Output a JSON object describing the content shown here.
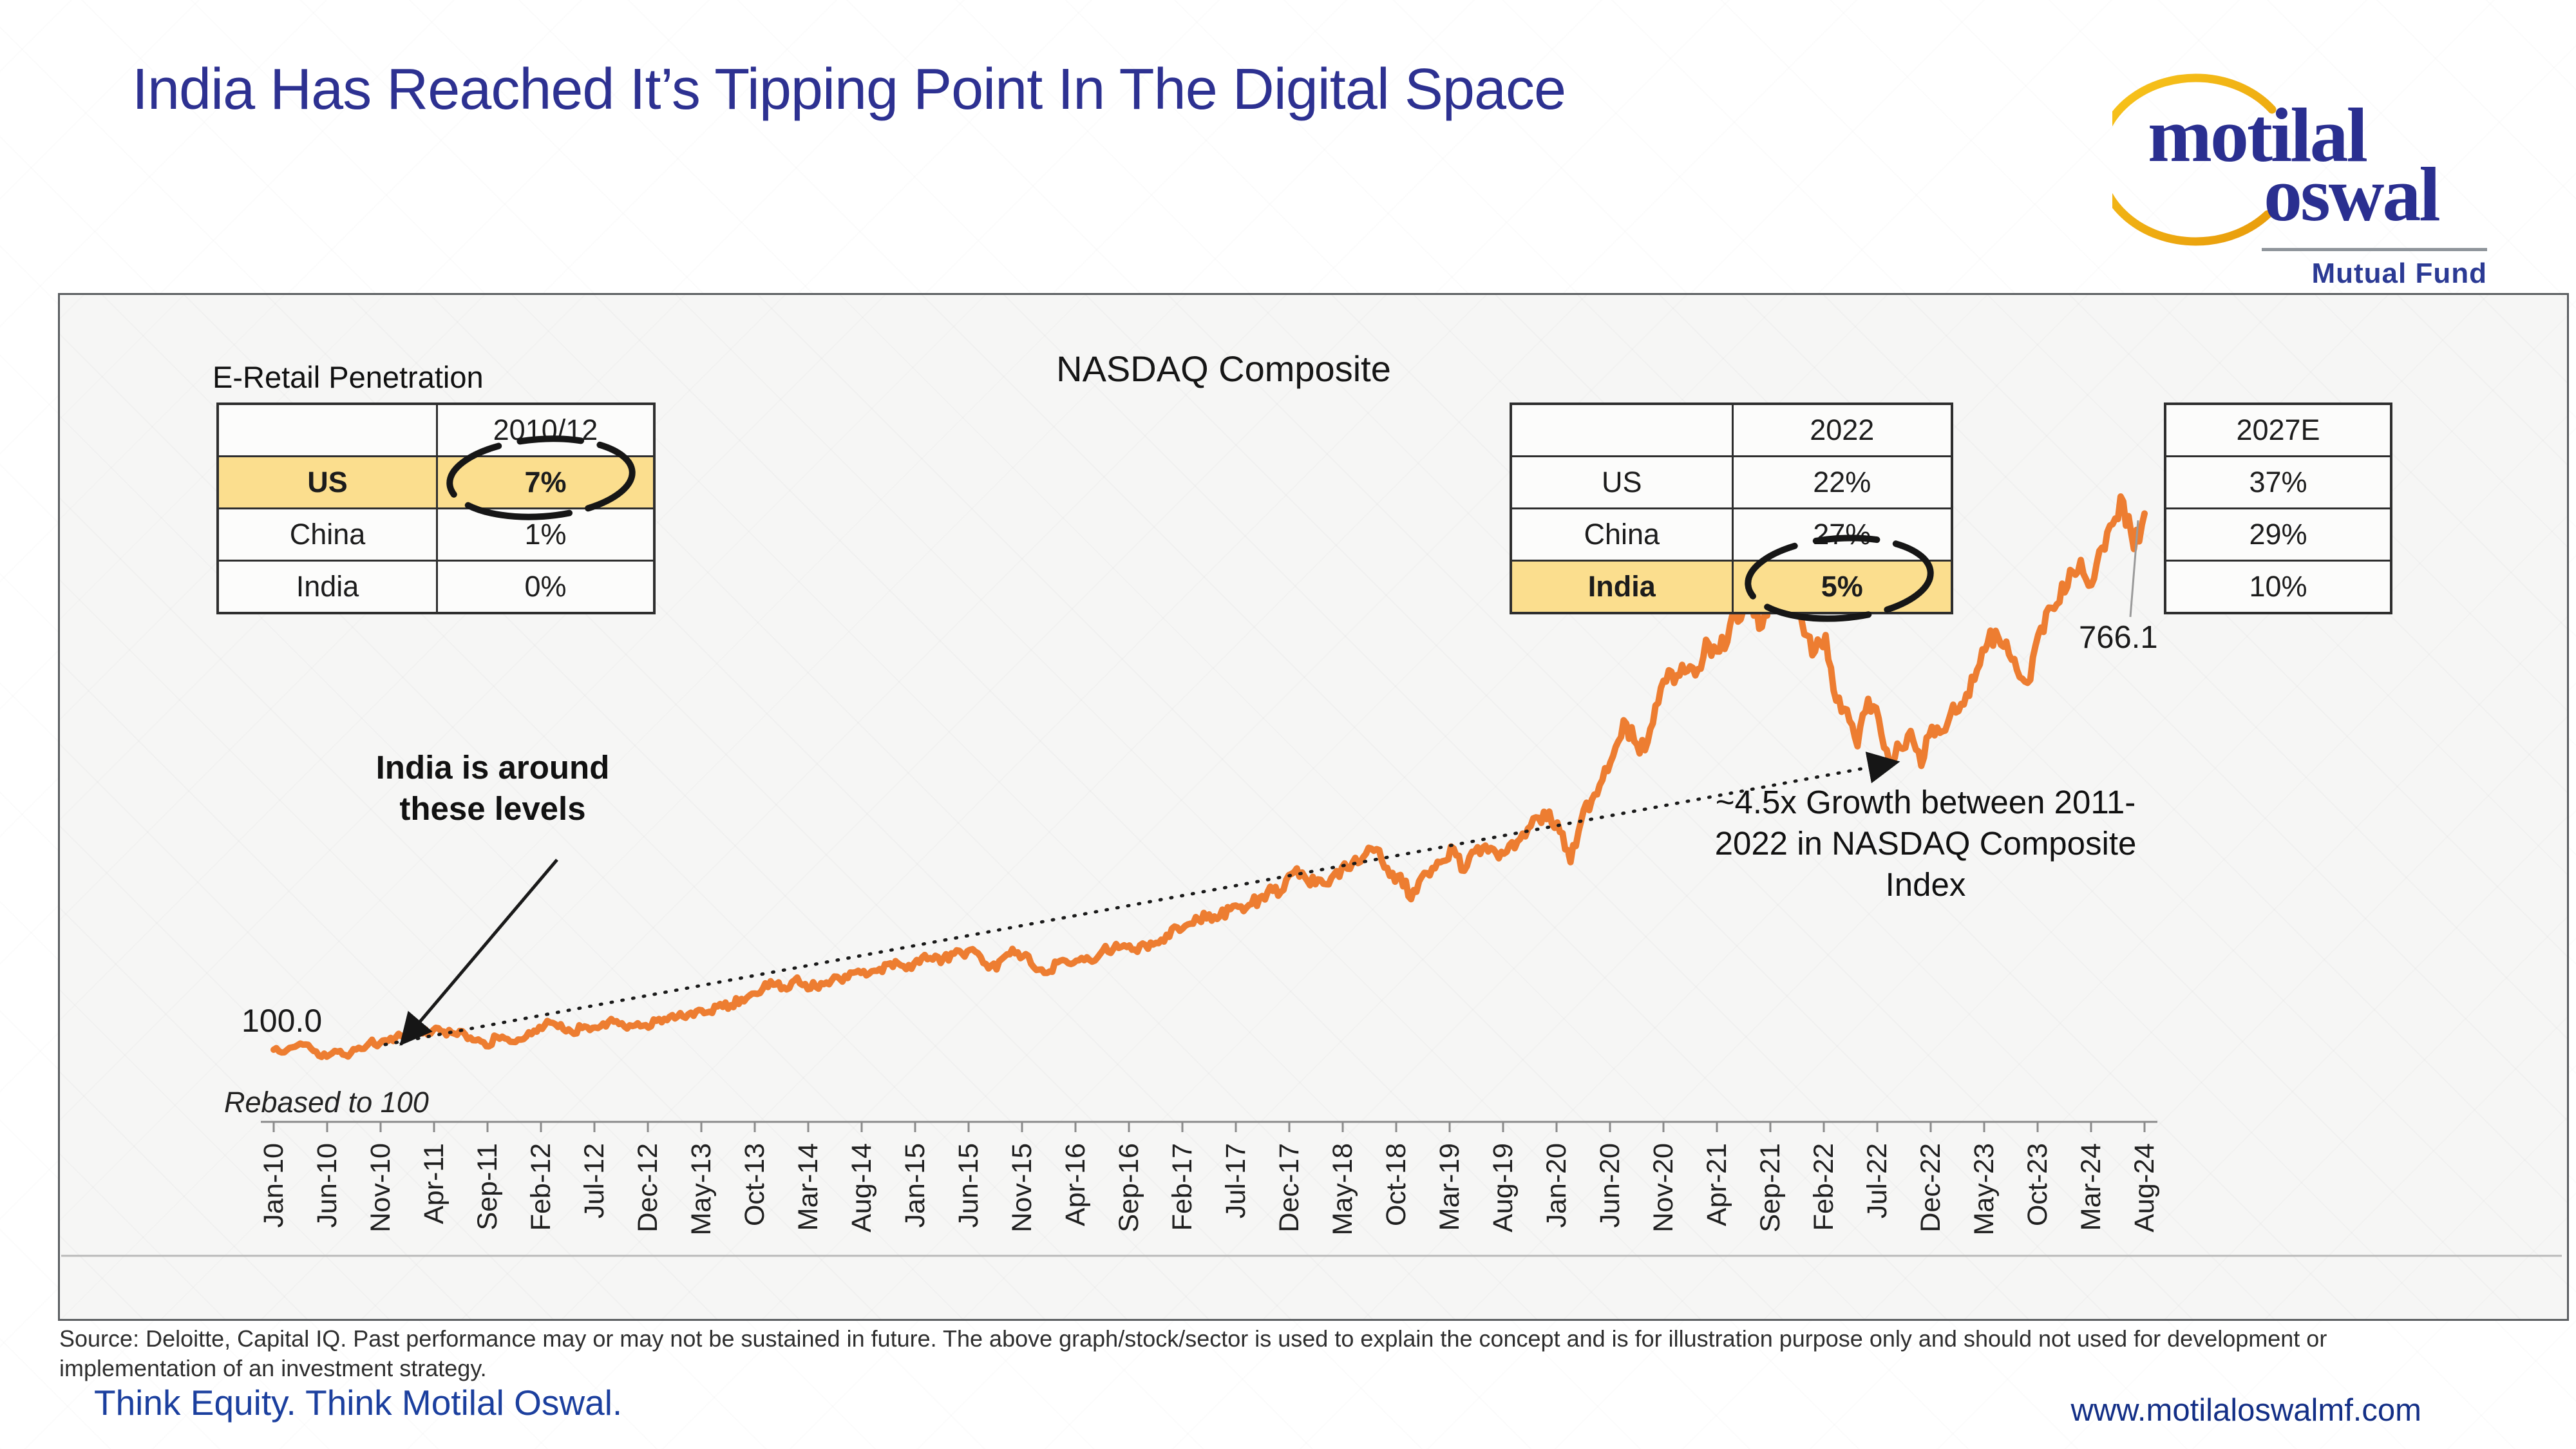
{
  "slide": {
    "title": "India Has Reached It’s Tipping Point In The Digital Space",
    "source_line1": "Source: Deloitte, Capital IQ. Past performance may or may not be sustained in future. The above graph/stock/sector is used to explain the concept and is for illustration purpose only and should not used for development or",
    "source_line2": "implementation of an investment strategy.",
    "footer_left": "Think Equity. Think Motilal Oswal.",
    "footer_right": "www.motilaloswalmf.com",
    "colors": {
      "title_blue": "#2d3191",
      "footer_blue": "#1b3f9e",
      "url_blue": "#132f86",
      "highlight_yellow": "#FBDE8E",
      "line_orange": "#ED7D31",
      "logo_gold": "#F2A90A",
      "logo_blue": "#2a2f90"
    }
  },
  "logo": {
    "word1": "motilal",
    "word2": "oswal",
    "tagline": "Mutual Fund",
    "mark": "gold-open-ellipse"
  },
  "eretail": {
    "label": "E-Retail Penetration",
    "tables": [
      {
        "header": "2010/12",
        "rows": [
          {
            "country": "US",
            "value": "7%",
            "highlight": true,
            "circled": true
          },
          {
            "country": "China",
            "value": "1%",
            "highlight": false,
            "circled": false
          },
          {
            "country": "India",
            "value": "0%",
            "highlight": false,
            "circled": false
          }
        ]
      },
      {
        "header": "2022",
        "rows": [
          {
            "country": "US",
            "value": "22%",
            "highlight": false,
            "circled": false
          },
          {
            "country": "China",
            "value": "27%",
            "highlight": false,
            "circled": false
          },
          {
            "country": "India",
            "value": "5%",
            "highlight": true,
            "circled": true
          }
        ]
      },
      {
        "header": "2027E",
        "rows": [
          {
            "value": "37%"
          },
          {
            "value": "29%"
          },
          {
            "value": "10%"
          }
        ]
      }
    ]
  },
  "chart_data": {
    "type": "line",
    "title": "NASDAQ Composite",
    "series_name": "NASDAQ Composite rebased to 100",
    "rebased_note": "Rebased to 100",
    "start_label": "100.0",
    "end_label": "766.1",
    "annotation_left_lines": [
      "India is around",
      "these levels"
    ],
    "annotation_right_lines": [
      "~4.5x Growth between 2011-",
      "2022 in NASDAQ Composite",
      "Index"
    ],
    "line_color": "#ED7D31",
    "x_start": "Jan-10",
    "x_end": "Aug-24",
    "x_frequency": "monthly",
    "ylim": [
      0,
      850
    ],
    "grid": false,
    "legend": "none",
    "x_tick_labels": [
      "Jan-10",
      "Jun-10",
      "Nov-10",
      "Apr-11",
      "Sep-11",
      "Feb-12",
      "Jul-12",
      "Dec-12",
      "May-13",
      "Oct-13",
      "Mar-14",
      "Aug-14",
      "Jan-15",
      "Jun-15",
      "Nov-15",
      "Apr-16",
      "Sep-16",
      "Feb-17",
      "Jul-17",
      "Dec-17",
      "May-18",
      "Oct-18",
      "Mar-19",
      "Aug-19",
      "Jan-20",
      "Jun-20",
      "Nov-20",
      "Apr-21",
      "Sep-21",
      "Feb-22",
      "Jul-22",
      "Dec-22",
      "May-23",
      "Oct-23",
      "Mar-24",
      "Aug-24"
    ],
    "values": [
      100.0,
      96.8,
      103.7,
      106.5,
      97.7,
      91.3,
      97.6,
      91.5,
      102.5,
      108.4,
      108.1,
      114.7,
      116.8,
      120.3,
      120.3,
      124.3,
      122.6,
      120.0,
      119.2,
      111.6,
      104.4,
      116.1,
      113.3,
      112.7,
      121.7,
      128.4,
      133.8,
      131.7,
      122.3,
      127.0,
      127.2,
      132.7,
      134.8,
      128.8,
      130.2,
      130.6,
      135.9,
      136.7,
      141.3,
      144.0,
      149.5,
      147.2,
      156.8,
      155.3,
      163.1,
      169.6,
      175.6,
      180.7,
      177.5,
      186.4,
      181.6,
      178.0,
      183.5,
      190.7,
      189.0,
      198.1,
      194.3,
      200.3,
      207.3,
      204.8,
      200.5,
      214.7,
      212.0,
      213.7,
      219.3,
      215.7,
      221.8,
      206.6,
      199.8,
      218.6,
      221.0,
      216.6,
      199.5,
      197.2,
      210.6,
      206.5,
      214.0,
      209.4,
      223.3,
      225.4,
      229.8,
      224.5,
      230.2,
      232.8,
      242.8,
      251.9,
      255.7,
      261.6,
      268.1,
      265.6,
      274.6,
      278.0,
      281.0,
      291.0,
      297.3,
      298.5,
      320.5,
      314.6,
      305.5,
      305.6,
      321.9,
      324.9,
      331.8,
      350.8,
      348.0,
      316.0,
      317.1,
      287.0,
      314.9,
      325.8,
      334.3,
      350.1,
      322.3,
      346.3,
      353.6,
      344.4,
      346.0,
      358.6,
      374.8,
      388.1,
      395.8,
      370.5,
      333.0,
      384.5,
      410.4,
      435.1,
      464.7,
      509.3,
      483.0,
      472.0,
      527.6,
      557.4,
      565.3,
      570.6,
      573.0,
      603.9,
      594.6,
      627.3,
      634.6,
      660.0,
      625.0,
      670.3,
      672.0,
      676.7,
      615.9,
      594.7,
      615.1,
      533.5,
      522.5,
      477.0,
      535.9,
      511.0,
      457.4,
      475.2,
      496.0,
      452.6,
      501.1,
      495.5,
      528.6,
      528.8,
      559.5,
      596.3,
      620.4,
      607.0,
      571.7,
      555.8,
      615.3,
      649.2,
      655.9,
      696.0,
      708.4,
      677.2,
      723.8,
      752.9,
      781.0,
      722.0,
      766.1
    ]
  }
}
